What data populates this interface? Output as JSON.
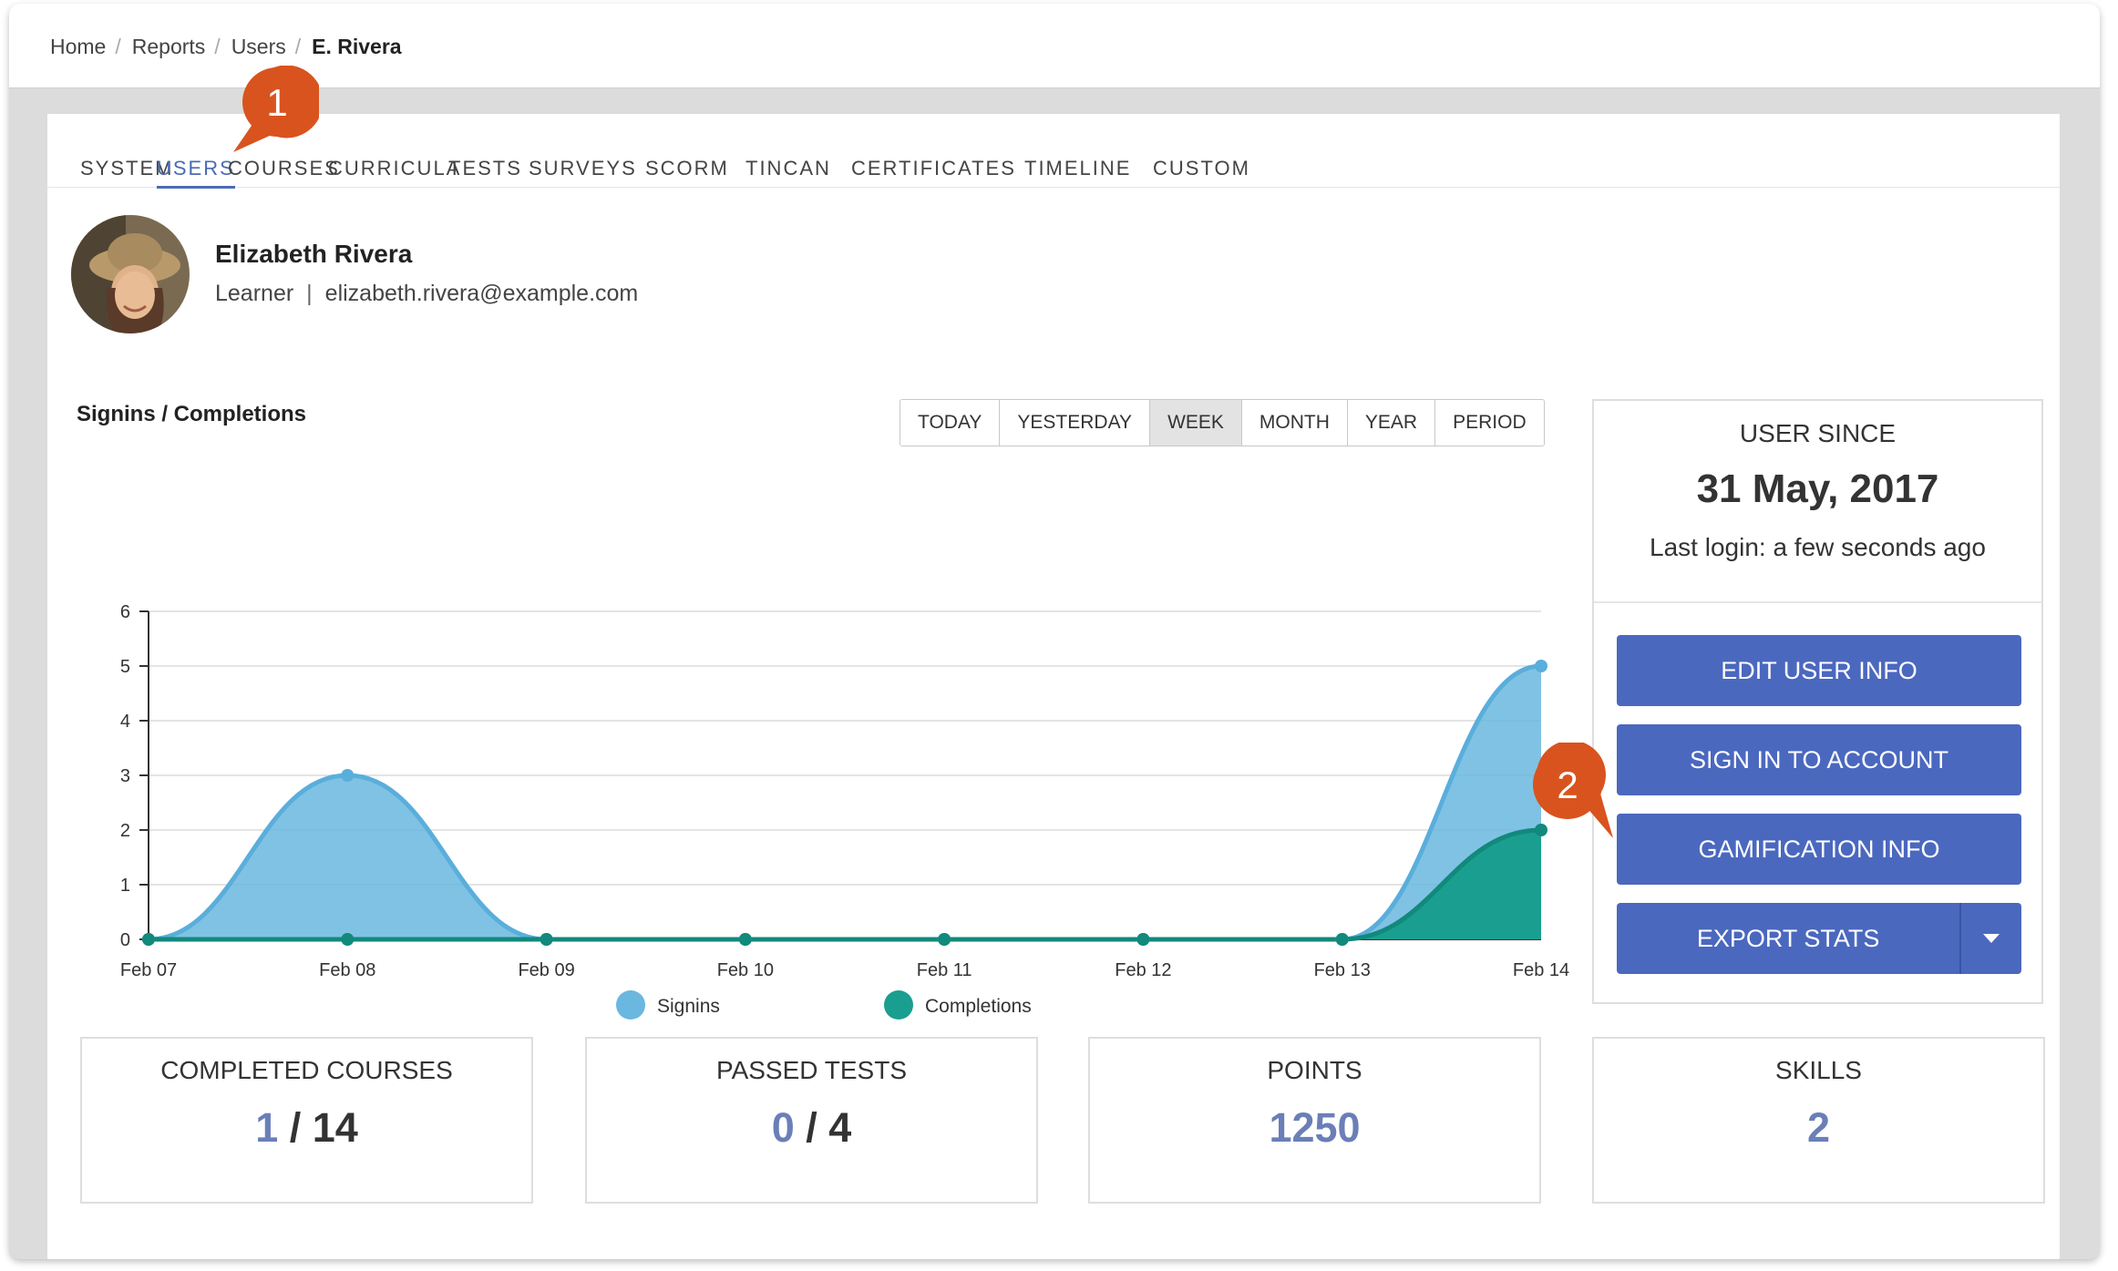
{
  "breadcrumb": [
    {
      "label": "Home"
    },
    {
      "label": "Reports"
    },
    {
      "label": "Users"
    },
    {
      "label": "E. Rivera"
    }
  ],
  "tabs": [
    {
      "label": "SYSTEM",
      "active": false
    },
    {
      "label": "USERS",
      "active": true
    },
    {
      "label": "COURSES",
      "active": false
    },
    {
      "label": "CURRICULA",
      "active": false
    },
    {
      "label": "TESTS",
      "active": false
    },
    {
      "label": "SURVEYS",
      "active": false
    },
    {
      "label": "SCORM",
      "active": false
    },
    {
      "label": "TINCAN",
      "active": false
    },
    {
      "label": "CERTIFICATES",
      "active": false
    },
    {
      "label": "TIMELINE",
      "active": false
    },
    {
      "label": "CUSTOM",
      "active": false
    }
  ],
  "user": {
    "name": "Elizabeth Rivera",
    "role": "Learner",
    "separator": "|",
    "email": "elizabeth.rivera@example.com"
  },
  "period_buttons": [
    {
      "label": "TODAY",
      "selected": false
    },
    {
      "label": "YESTERDAY",
      "selected": false
    },
    {
      "label": "WEEK",
      "selected": true
    },
    {
      "label": "MONTH",
      "selected": false
    },
    {
      "label": "YEAR",
      "selected": false
    },
    {
      "label": "PERIOD",
      "selected": false
    }
  ],
  "chart_data": {
    "type": "area",
    "title": "Signins / Completions",
    "categories": [
      "Feb 07",
      "Feb 08",
      "Feb 09",
      "Feb 10",
      "Feb 11",
      "Feb 12",
      "Feb 13",
      "Feb 14"
    ],
    "series": [
      {
        "name": "Signins",
        "values": [
          0,
          3,
          0,
          0,
          0,
          0,
          0,
          5
        ],
        "color": "#6ab7df"
      },
      {
        "name": "Completions",
        "values": [
          0,
          0,
          0,
          0,
          0,
          0,
          0,
          2
        ],
        "color": "#1a9e8f"
      }
    ],
    "yticks": [
      "0",
      "1",
      "2",
      "3",
      "4",
      "5",
      "6"
    ],
    "ylim": [
      0,
      6
    ],
    "grid": true,
    "legend": "bottom-center"
  },
  "user_since": {
    "label": "USER SINCE",
    "date": "31 May, 2017",
    "last_login": "Last login: a few seconds ago"
  },
  "actions": {
    "edit_user_info": "EDIT USER INFO",
    "sign_in_to_account": "SIGN IN TO ACCOUNT",
    "gamification_info": "GAMIFICATION INFO",
    "export_stats": "EXPORT STATS"
  },
  "stats": {
    "completed_courses": {
      "label": "COMPLETED COURSES",
      "value": "1",
      "total": "14"
    },
    "passed_tests": {
      "label": "PASSED TESTS",
      "value": "0",
      "total": "4"
    },
    "points": {
      "label": "POINTS",
      "value": "1250"
    },
    "skills": {
      "label": "SKILLS",
      "value": "2"
    }
  },
  "callouts": [
    {
      "number": "1",
      "color": "#d9531e"
    },
    {
      "number": "2",
      "color": "#d9531e"
    }
  ],
  "colors": {
    "accent": "#4a6bb5",
    "button": "#4b68bf",
    "stat_value": "#6b7fb7"
  }
}
